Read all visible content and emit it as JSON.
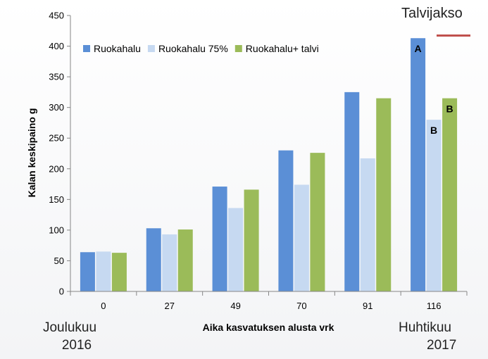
{
  "annotations": {
    "winter_period": "Talvijakso",
    "start_month": "Joulukuu",
    "start_year": "2016",
    "end_month": "Huhtikuu",
    "end_year": "2017"
  },
  "chart_data": {
    "type": "bar",
    "title": "",
    "xlabel": "Aika kasvatuksen alusta vrk",
    "ylabel": "Kalan keskipaino g",
    "categories": [
      "0",
      "27",
      "49",
      "70",
      "91",
      "116"
    ],
    "ylim": [
      0,
      450
    ],
    "yticks": [
      0,
      50,
      100,
      150,
      200,
      250,
      300,
      350,
      400,
      450
    ],
    "grid": false,
    "legend_position": "top-left",
    "series": [
      {
        "name": "Ruokahalu",
        "color": "#5b8fd6",
        "values": [
          64,
          103,
          171,
          230,
          325,
          413
        ]
      },
      {
        "name": "Ruokahalu 75%",
        "color": "#c6d9f1",
        "values": [
          65,
          93,
          136,
          174,
          217,
          280
        ]
      },
      {
        "name": "Ruokahalu+ talvi",
        "color": "#9bbb59",
        "values": [
          63,
          101,
          166,
          226,
          315,
          315
        ]
      }
    ],
    "bar_labels": [
      {
        "series": 0,
        "index": 5,
        "text": "A"
      },
      {
        "series": 1,
        "index": 5,
        "text": "B"
      },
      {
        "series": 2,
        "index": 5,
        "text": "B"
      }
    ]
  }
}
